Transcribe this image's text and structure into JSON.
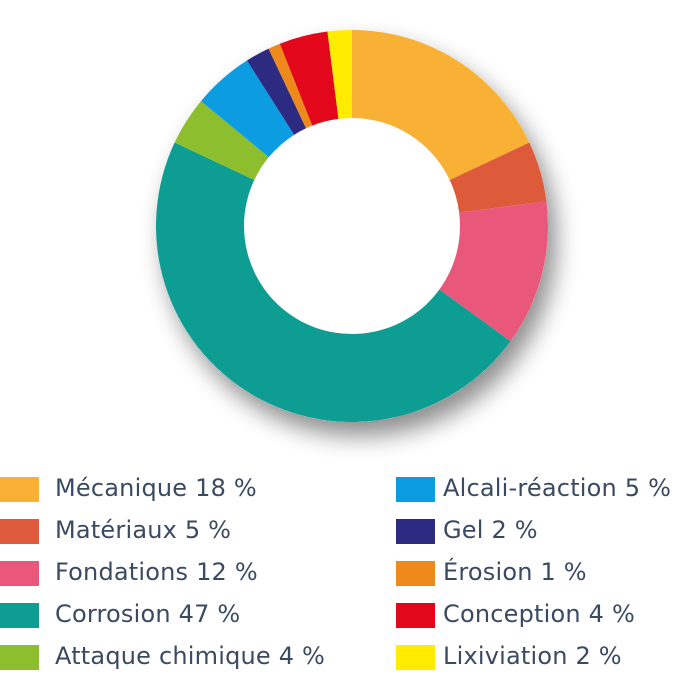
{
  "chart_data": {
    "type": "pie",
    "variant": "donut",
    "series": [
      {
        "name": "Mécanique",
        "value": 18,
        "label": "Mécanique 18 %",
        "color": "#F8B135"
      },
      {
        "name": "Matériaux",
        "value": 5,
        "label": "Matériaux 5 %",
        "color": "#DD5B3B"
      },
      {
        "name": "Fondations",
        "value": 12,
        "label": "Fondations 12 %",
        "color": "#E9577A"
      },
      {
        "name": "Corrosion",
        "value": 47,
        "label": "Corrosion 47 %",
        "color": "#0E9D93"
      },
      {
        "name": "Attaque chimique",
        "value": 4,
        "label": "Attaque chimique 4 %",
        "color": "#8DBE2E"
      },
      {
        "name": "Alcali-réaction",
        "value": 5,
        "label": "Alcali-réaction 5 %",
        "color": "#0C9CE1"
      },
      {
        "name": "Gel",
        "value": 2,
        "label": "Gel 2 %",
        "color": "#2D2A82"
      },
      {
        "name": "Érosion",
        "value": 1,
        "label": "Érosion 1 %",
        "color": "#EE8A1C"
      },
      {
        "name": "Conception",
        "value": 4,
        "label": "Conception 4 %",
        "color": "#E3071C"
      },
      {
        "name": "Lixiviation",
        "value": 2,
        "label": "Lixiviation 2 %",
        "color": "#FFEC00"
      }
    ],
    "legend_placement": "bottom, two columns",
    "title": ""
  }
}
